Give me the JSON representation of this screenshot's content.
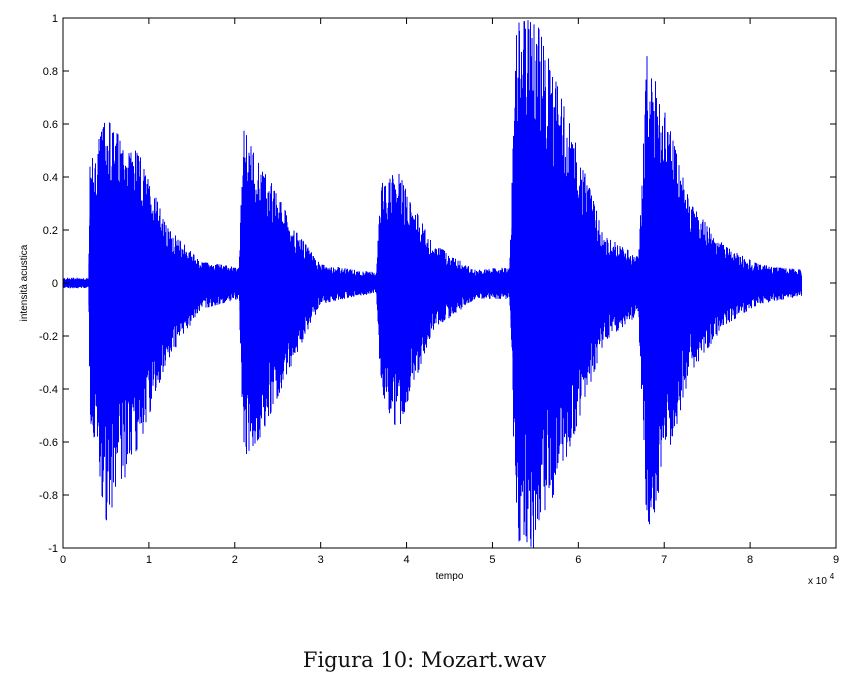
{
  "figure": {
    "caption": "Figura 10: Mozart.wav"
  },
  "chart_data": {
    "type": "line",
    "title": "",
    "xlabel": "tempo",
    "ylabel": "intensità acustica",
    "x_multiplier_label": "x 10",
    "x_multiplier_exponent": "4",
    "xlim": [
      0,
      9
    ],
    "ylim": [
      -1,
      1
    ],
    "x_ticks": [
      "0",
      "1",
      "2",
      "3",
      "4",
      "5",
      "6",
      "7",
      "8",
      "9"
    ],
    "y_ticks": [
      "-1",
      "-0.8",
      "-0.6",
      "-0.4",
      "-0.2",
      "0",
      "0.2",
      "0.4",
      "0.6",
      "0.8",
      "1"
    ],
    "grid": false,
    "legend": "none",
    "series": [
      {
        "color": "#0000ff",
        "description_envelope": true,
        "x": [
          0,
          0.3,
          0.31,
          0.5,
          0.9,
          1.2,
          1.6,
          2.05,
          2.1,
          2.3,
          2.7,
          3.0,
          3.4,
          3.65,
          3.7,
          3.9,
          4.3,
          4.8,
          5.2,
          5.28,
          5.5,
          5.9,
          6.3,
          6.7,
          6.8,
          7.0,
          7.3,
          7.7,
          8.1,
          8.6
        ],
        "upper": [
          0.02,
          0.02,
          0.44,
          0.62,
          0.48,
          0.22,
          0.08,
          0.06,
          0.58,
          0.46,
          0.2,
          0.07,
          0.05,
          0.04,
          0.38,
          0.42,
          0.15,
          0.05,
          0.06,
          0.98,
          1.0,
          0.6,
          0.18,
          0.1,
          0.86,
          0.66,
          0.3,
          0.14,
          0.07,
          0.05
        ],
        "lower": [
          -0.02,
          -0.02,
          -0.5,
          -0.9,
          -0.6,
          -0.3,
          -0.1,
          -0.06,
          -0.66,
          -0.58,
          -0.28,
          -0.08,
          -0.05,
          -0.04,
          -0.42,
          -0.56,
          -0.18,
          -0.06,
          -0.06,
          -0.98,
          -1.0,
          -0.62,
          -0.22,
          -0.12,
          -0.98,
          -0.72,
          -0.34,
          -0.16,
          -0.08,
          -0.05
        ]
      }
    ]
  }
}
